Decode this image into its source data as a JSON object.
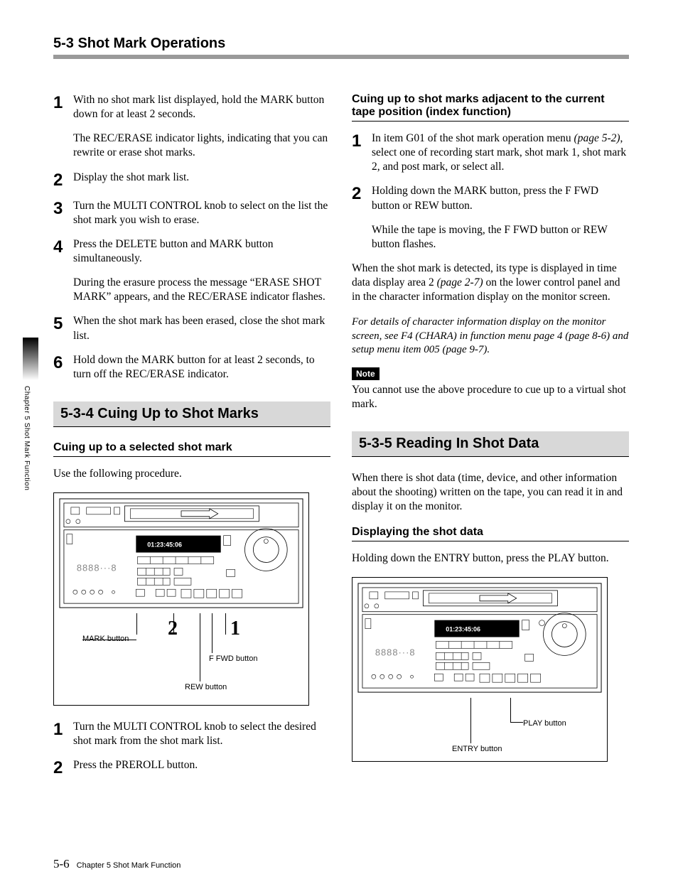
{
  "header": "5-3 Shot Mark Operations",
  "side_tab": "Chapter 5   Shot Mark Function",
  "footer_page": "5-6",
  "footer_chapter": "Chapter 5   Shot Mark Function",
  "left": {
    "steps_a": [
      {
        "n": "1",
        "paras": [
          "With no shot mark list displayed, hold the MARK button down for at least 2 seconds.",
          "The REC/ERASE indicator lights, indicating that you can rewrite or erase shot marks."
        ]
      },
      {
        "n": "2",
        "paras": [
          "Display the shot mark list."
        ]
      },
      {
        "n": "3",
        "paras": [
          "Turn the MULTI CONTROL knob to select on the list the shot mark you wish to erase."
        ]
      },
      {
        "n": "4",
        "paras": [
          "Press the DELETE button and MARK button simultaneously.",
          "During the erasure process the message “ERASE SHOT MARK” appears, and the REC/ERASE indicator flashes."
        ]
      },
      {
        "n": "5",
        "paras": [
          "When the shot mark has been erased, close the shot mark list."
        ]
      },
      {
        "n": "6",
        "paras": [
          "Hold down the MARK button for at least 2 seconds, to turn off the REC/ERASE indicator."
        ]
      }
    ],
    "h2_534": "5-3-4  Cuing Up to Shot Marks",
    "h3_cuing_selected": "Cuing up to a selected shot mark",
    "use_following": "Use the following procedure.",
    "fig1": {
      "mark": "MARK button",
      "ffwd": "F FWD button",
      "rew": "REW button",
      "n1": "1",
      "n2": "2",
      "timecode": "01:23:45:06"
    },
    "steps_b": [
      {
        "n": "1",
        "paras": [
          "Turn the MULTI CONTROL knob to select the desired shot mark from the shot mark list."
        ]
      },
      {
        "n": "2",
        "paras": [
          "Press the PREROLL button."
        ]
      }
    ]
  },
  "right": {
    "h3_cuing_adjacent": "Cuing up to shot marks adjacent to the current tape position (index function)",
    "steps_c": [
      {
        "n": "1",
        "paras": [
          "In item G01 of the shot mark operation menu (page 5-2), select one of recording start mark, shot mark 1, shot mark 2, and post mark, or select all."
        ]
      },
      {
        "n": "2",
        "paras": [
          "Holding down the MARK button, press the F FWD button or REW button.",
          "While the tape is moving, the F FWD button or REW button flashes."
        ]
      }
    ],
    "para_detected": "When the shot mark is detected, its type is displayed in time data display area 2 (page 2-7) on the lower control panel and in the character information display on the monitor screen.",
    "para_details": "For details of character information display on the monitor screen, see F4 (CHARA) in function menu page 4 (page 8-6) and setup menu item 005 (page 9-7).",
    "note_label": "Note",
    "para_note": "You cannot use the above procedure to cue up to a virtual shot mark.",
    "h2_535": "5-3-5  Reading In Shot Data",
    "para_shotdata": "When there is shot data (time, device, and other information about the shooting) written on the tape, you can read it in and display it on the monitor.",
    "h3_displaying": "Displaying the shot data",
    "para_holding": "Holding down the ENTRY button, press the PLAY button.",
    "fig2": {
      "play": "PLAY button",
      "entry": "ENTRY button",
      "timecode": "01:23:45:06"
    }
  }
}
